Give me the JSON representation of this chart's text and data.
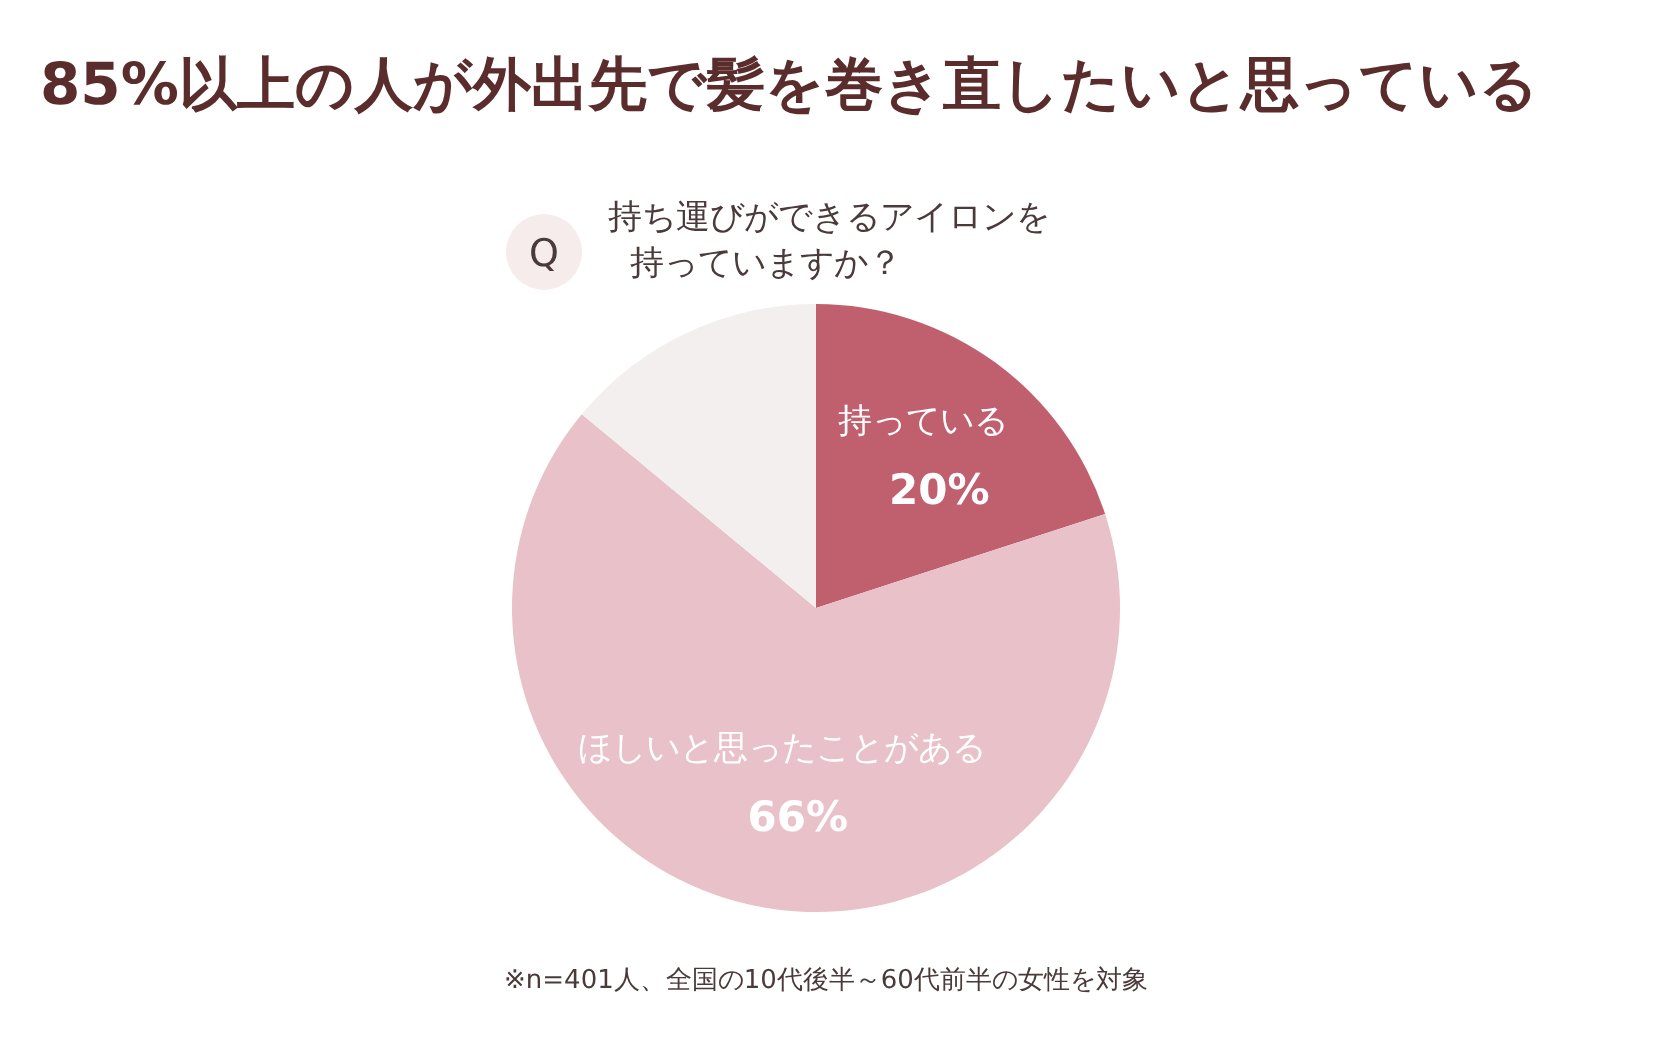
{
  "chart_data": {
    "type": "pie",
    "title": "85%以上の人が外出先で髪を巻き直したいと思っている",
    "subtitle": "持ち運びができるアイロンを持っていますか？",
    "categories": [
      "持っている",
      "ほしいと思ったことがある",
      null
    ],
    "values": [
      20,
      66,
      14
    ],
    "colors": [
      "#c0606f",
      "#e8c1c9",
      "#f3efef"
    ],
    "value_labels": [
      "20%",
      "66%",
      null
    ],
    "annotations": [
      "Q",
      "※n=401人、全国の10代後半～60代前半の女性を対象"
    ]
  }
}
